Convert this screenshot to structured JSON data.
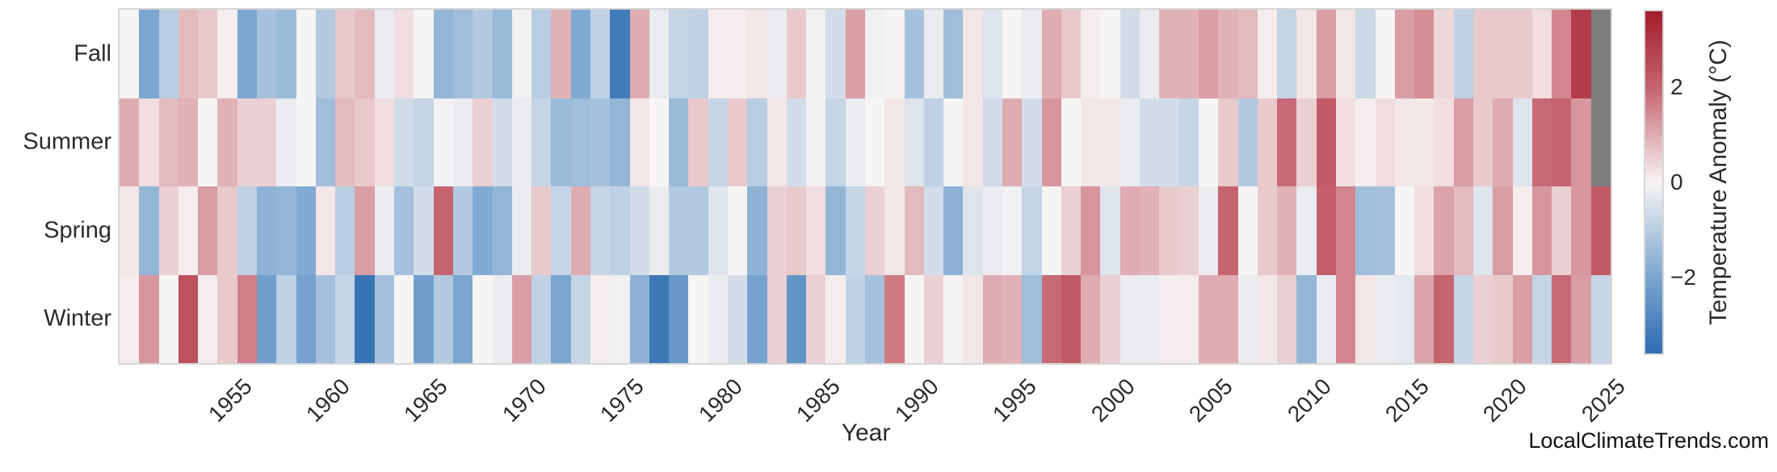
{
  "app": {
    "watermark": "LocalClimateTrends.com"
  },
  "axes": {
    "xlabel": "Year",
    "x_tick_labels": [
      "1955",
      "1960",
      "1965",
      "1970",
      "1975",
      "1980",
      "1985",
      "1990",
      "1995",
      "2000",
      "2005",
      "2010",
      "2015",
      "2020",
      "2025"
    ],
    "row_labels": [
      "Fall",
      "Summer",
      "Spring",
      "Winter"
    ]
  },
  "colorbar": {
    "label": "Temperature Anomaly (°C)",
    "tick_labels": [
      "2",
      "0",
      "−2"
    ],
    "tick_values": [
      2,
      0,
      -2
    ],
    "vmin": -3.6,
    "vmax": 3.6,
    "gradient_stops": [
      {
        "v": 3.6,
        "color": "#a41d2d"
      },
      {
        "v": 2.0,
        "color": "#c5636e"
      },
      {
        "v": 0.0,
        "color": "#f7f4f4"
      },
      {
        "v": -2.0,
        "color": "#7aa6d0"
      },
      {
        "v": -3.6,
        "color": "#2e6cb0"
      }
    ],
    "missing_color": "#7e7e7e"
  },
  "chart_data": {
    "type": "heatmap",
    "title": "",
    "xlabel": "Year",
    "ylabel": "",
    "unit": "°C",
    "x": [
      1950,
      1951,
      1952,
      1953,
      1954,
      1955,
      1956,
      1957,
      1958,
      1959,
      1960,
      1961,
      1962,
      1963,
      1964,
      1965,
      1966,
      1967,
      1968,
      1969,
      1970,
      1971,
      1972,
      1973,
      1974,
      1975,
      1976,
      1977,
      1978,
      1979,
      1980,
      1981,
      1982,
      1983,
      1984,
      1985,
      1986,
      1987,
      1988,
      1989,
      1990,
      1991,
      1992,
      1993,
      1994,
      1995,
      1996,
      1997,
      1998,
      1999,
      2000,
      2001,
      2002,
      2003,
      2004,
      2005,
      2006,
      2007,
      2008,
      2009,
      2010,
      2011,
      2012,
      2013,
      2014,
      2015,
      2016,
      2017,
      2018,
      2019,
      2020,
      2021,
      2022,
      2023,
      2024,
      2025
    ],
    "rows": [
      "Fall",
      "Summer",
      "Spring",
      "Winter"
    ],
    "series": [
      {
        "name": "Fall",
        "values": [
          0.0,
          -2.0,
          -1.0,
          0.8,
          0.6,
          0.1,
          -2.0,
          -1.3,
          -1.5,
          0.0,
          -1.1,
          0.6,
          0.8,
          -0.2,
          0.3,
          0.0,
          -1.6,
          -1.4,
          -1.1,
          -1.5,
          -0.1,
          -1.0,
          0.9,
          -1.9,
          -0.9,
          -3.2,
          1.0,
          -0.2,
          -0.8,
          -0.9,
          0.1,
          0.1,
          0.2,
          -0.2,
          0.6,
          -0.1,
          -0.6,
          1.2,
          -0.1,
          0.0,
          -1.3,
          -0.2,
          -1.4,
          0.2,
          -0.4,
          0.0,
          -0.2,
          1.0,
          0.6,
          0.1,
          0.0,
          -0.6,
          -0.2,
          0.9,
          0.9,
          1.2,
          0.9,
          0.8,
          0.1,
          -0.8,
          0.2,
          1.2,
          0.2,
          -0.7,
          0.0,
          1.2,
          1.4,
          0.4,
          -0.9,
          0.6,
          0.6,
          0.6,
          0.3,
          1.5,
          2.9,
          null
        ]
      },
      {
        "name": "Summer",
        "values": [
          1.0,
          0.3,
          0.8,
          0.9,
          0.0,
          0.9,
          0.5,
          0.5,
          -0.2,
          0.0,
          -1.4,
          0.8,
          0.6,
          0.3,
          -0.6,
          -0.8,
          -0.1,
          -0.2,
          0.5,
          -0.6,
          -0.2,
          -0.8,
          -1.5,
          -1.4,
          -1.3,
          -1.6,
          0.2,
          0.0,
          -1.5,
          0.6,
          -0.8,
          0.6,
          -1.0,
          0.2,
          -0.6,
          -0.1,
          -0.8,
          -0.2,
          0.0,
          0.2,
          -0.4,
          -0.9,
          0.0,
          0.2,
          -0.6,
          1.0,
          -0.6,
          1.3,
          0.0,
          0.2,
          0.2,
          -0.2,
          -0.6,
          -0.6,
          -0.8,
          0.0,
          0.6,
          -1.1,
          0.6,
          1.9,
          0.5,
          2.2,
          0.3,
          0.1,
          0.3,
          0.2,
          0.2,
          0.3,
          1.2,
          0.6,
          1.0,
          -0.4,
          1.9,
          2.0,
          1.3,
          null
        ]
      },
      {
        "name": "Spring",
        "values": [
          0.2,
          -1.6,
          0.5,
          0.1,
          1.2,
          0.6,
          -0.9,
          -1.7,
          -1.6,
          -1.9,
          0.2,
          -1.0,
          1.2,
          -0.2,
          -1.3,
          -0.6,
          2.0,
          -1.1,
          -1.9,
          -1.6,
          -0.2,
          0.6,
          -0.8,
          1.0,
          -0.8,
          -0.9,
          -0.6,
          -0.2,
          -1.1,
          -1.1,
          -0.4,
          0.0,
          -1.7,
          0.5,
          0.6,
          0.3,
          -1.6,
          -0.8,
          0.5,
          0.2,
          0.8,
          -0.6,
          -1.7,
          -0.4,
          -0.2,
          -0.1,
          -0.8,
          0.0,
          0.5,
          1.3,
          -0.4,
          1.0,
          0.9,
          0.6,
          0.5,
          -0.2,
          2.0,
          0.0,
          0.6,
          0.9,
          -0.2,
          2.1,
          1.5,
          -1.4,
          -1.3,
          0.0,
          0.3,
          1.1,
          0.8,
          -0.4,
          1.2,
          0.1,
          1.3,
          0.5,
          1.3,
          2.2
        ]
      },
      {
        "name": "Winter",
        "values": [
          0.1,
          1.3,
          0.0,
          2.4,
          0.1,
          0.6,
          1.6,
          -2.2,
          -0.9,
          -2.1,
          -1.3,
          -0.8,
          -3.4,
          -1.3,
          0.0,
          -2.2,
          -1.1,
          -2.0,
          0.0,
          -0.2,
          1.2,
          -0.9,
          -2.0,
          -0.8,
          0.1,
          -0.1,
          -1.7,
          -3.3,
          -2.4,
          0.0,
          -0.2,
          -0.6,
          -2.1,
          0.5,
          -2.5,
          0.5,
          0.1,
          -0.9,
          -1.3,
          1.7,
          0.0,
          0.5,
          0.0,
          0.2,
          1.0,
          0.9,
          -1.4,
          1.9,
          2.2,
          1.0,
          0.5,
          -0.2,
          -0.2,
          0.1,
          0.1,
          1.0,
          1.0,
          -0.2,
          0.2,
          0.5,
          -1.6,
          -0.2,
          1.5,
          0.2,
          -0.2,
          -0.3,
          1.1,
          2.0,
          -0.8,
          0.5,
          0.6,
          1.2,
          -0.8,
          1.9,
          1.2,
          -0.8
        ]
      }
    ],
    "x_start_year": 1950,
    "x_end_year": 2025,
    "legend_position": "right-colorbar",
    "grid": false
  }
}
